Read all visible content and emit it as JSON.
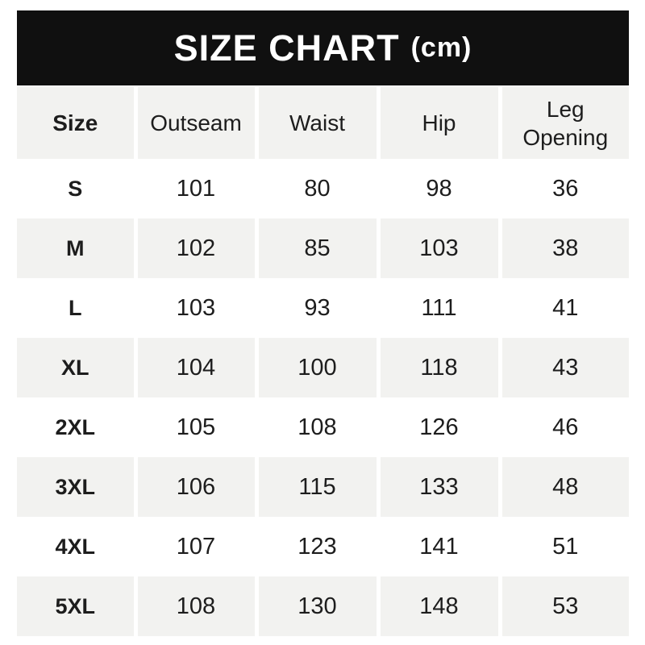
{
  "banner": {
    "title": "SIZE CHART",
    "unit": "(cm)"
  },
  "colors": {
    "banner_bg": "#101010",
    "banner_text": "#ffffff",
    "row_alt_bg": "#f2f2f0",
    "row_bg": "#ffffff",
    "text": "#1d1d1d",
    "page_bg": "#ffffff"
  },
  "chart_data": {
    "type": "table",
    "title": "SIZE CHART (cm)",
    "unit": "cm",
    "columns": [
      "Size",
      "Outseam",
      "Waist",
      "Hip",
      "Leg Opening"
    ],
    "rows": [
      [
        "S",
        101,
        80,
        98,
        36
      ],
      [
        "M",
        102,
        85,
        103,
        38
      ],
      [
        "L",
        103,
        93,
        111,
        41
      ],
      [
        "XL",
        104,
        100,
        118,
        43
      ],
      [
        "2XL",
        105,
        108,
        126,
        46
      ],
      [
        "3XL",
        106,
        115,
        133,
        48
      ],
      [
        "4XL",
        107,
        123,
        141,
        51
      ],
      [
        "5XL",
        108,
        130,
        148,
        53
      ]
    ],
    "layout": {
      "legend": false,
      "grid": false,
      "row_striping": "alternating white / light gray"
    }
  }
}
